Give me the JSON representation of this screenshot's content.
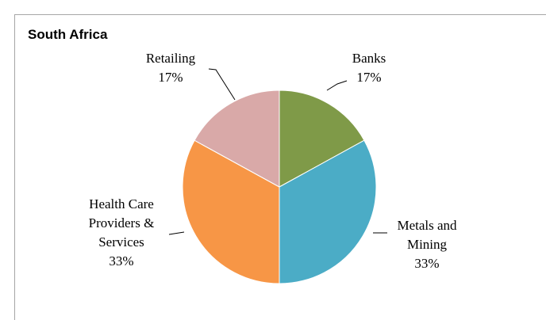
{
  "chart_data": {
    "type": "pie",
    "title": "South Africa",
    "categories": [
      "Banks",
      "Metals and Mining",
      "Health Care Providers & Services",
      "Retailing"
    ],
    "values": [
      17,
      33,
      33,
      17
    ],
    "value_labels": [
      "17%",
      "33%",
      "33%",
      "17%"
    ],
    "colors": [
      "#7f9a48",
      "#4bacc6",
      "#f79646",
      "#d9a9a8"
    ]
  }
}
